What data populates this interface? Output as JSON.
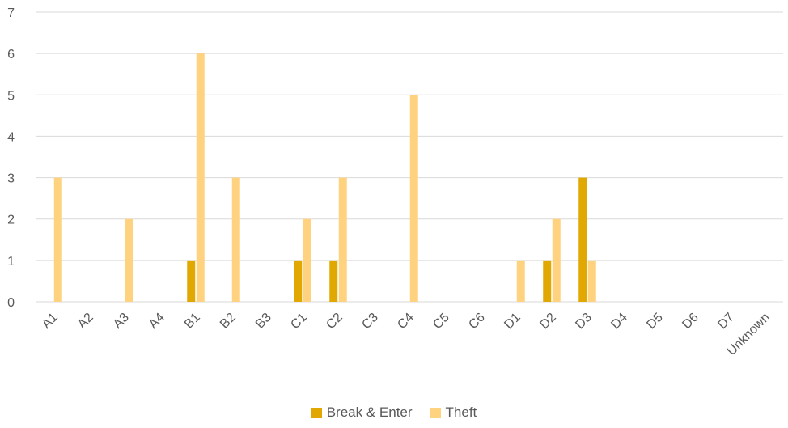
{
  "chart_data": {
    "type": "bar",
    "categories": [
      "A1",
      "A2",
      "A3",
      "A4",
      "B1",
      "B2",
      "B3",
      "C1",
      "C2",
      "C3",
      "C4",
      "C5",
      "C6",
      "D1",
      "D2",
      "D3",
      "D4",
      "D5",
      "D6",
      "D7",
      "Unknown"
    ],
    "series": [
      {
        "name": "Break & Enter",
        "color": "#e0a800",
        "values": [
          0,
          0,
          0,
          0,
          1,
          0,
          0,
          1,
          1,
          0,
          0,
          0,
          0,
          0,
          1,
          3,
          0,
          0,
          0,
          0,
          0
        ]
      },
      {
        "name": "Theft",
        "color": "#ffd27f",
        "values": [
          3,
          0,
          2,
          0,
          6,
          3,
          0,
          2,
          3,
          0,
          5,
          0,
          0,
          1,
          2,
          1,
          0,
          0,
          0,
          0,
          0
        ]
      }
    ],
    "ylim": [
      0,
      7
    ],
    "yticks": [
      0,
      1,
      2,
      3,
      4,
      5,
      6,
      7
    ],
    "grid": true,
    "legend": "bottom-center"
  }
}
